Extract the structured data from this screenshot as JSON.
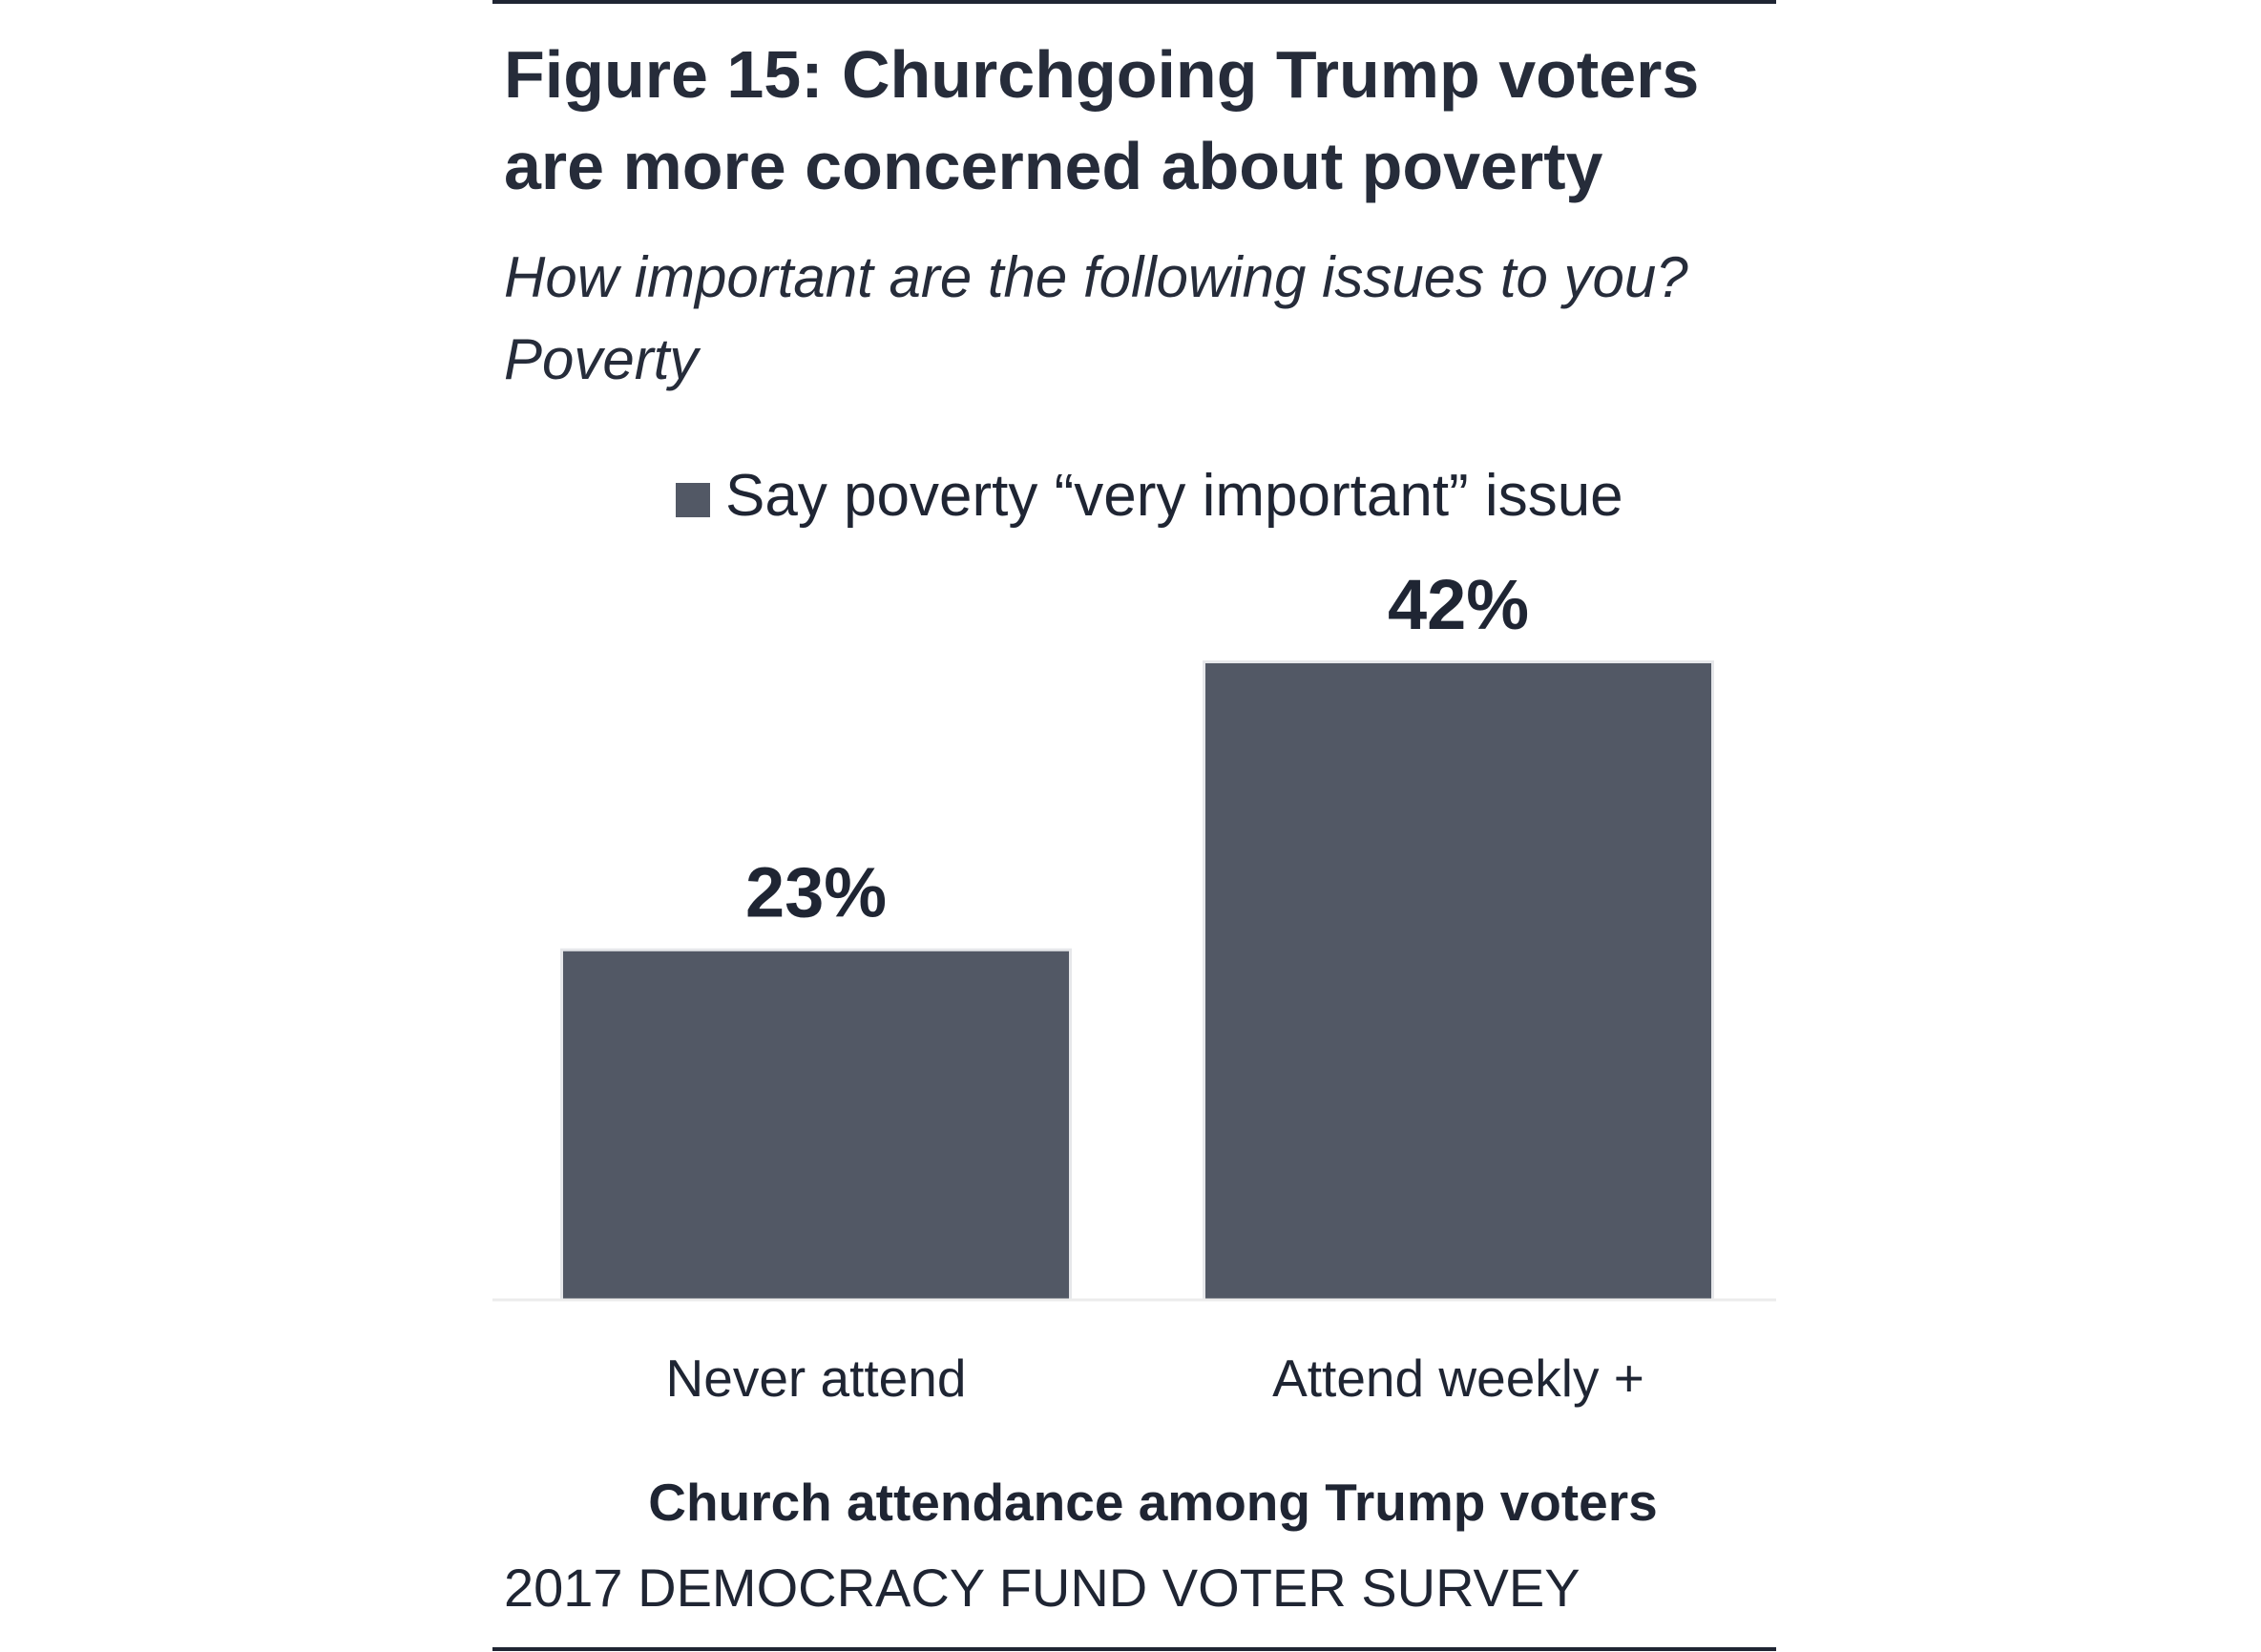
{
  "figure": {
    "title": "Figure 15: Churchgoing Trump voters are more concerned about poverty",
    "subtitle_lines": [
      "How important are the following issues to you?",
      "Poverty"
    ],
    "source": "2017 DEMOCRACY FUND VOTER SURVEY"
  },
  "chart_data": {
    "type": "bar",
    "categories": [
      "Never attend",
      "Attend weekly +"
    ],
    "series": [
      {
        "name": "Say poverty “very important” issue",
        "values": [
          23,
          42
        ],
        "color": "#525865"
      }
    ],
    "data_labels": [
      "23%",
      "42%"
    ],
    "title": "Figure 15: Churchgoing Trump voters are more concerned about poverty",
    "subtitle": "How important are the following issues to you? Poverty",
    "xlabel": "Church attendance among Trump voters",
    "ylabel": "",
    "ylim": [
      0,
      42
    ],
    "grid": false,
    "y_axis_visible": false,
    "legend": "top-center"
  }
}
